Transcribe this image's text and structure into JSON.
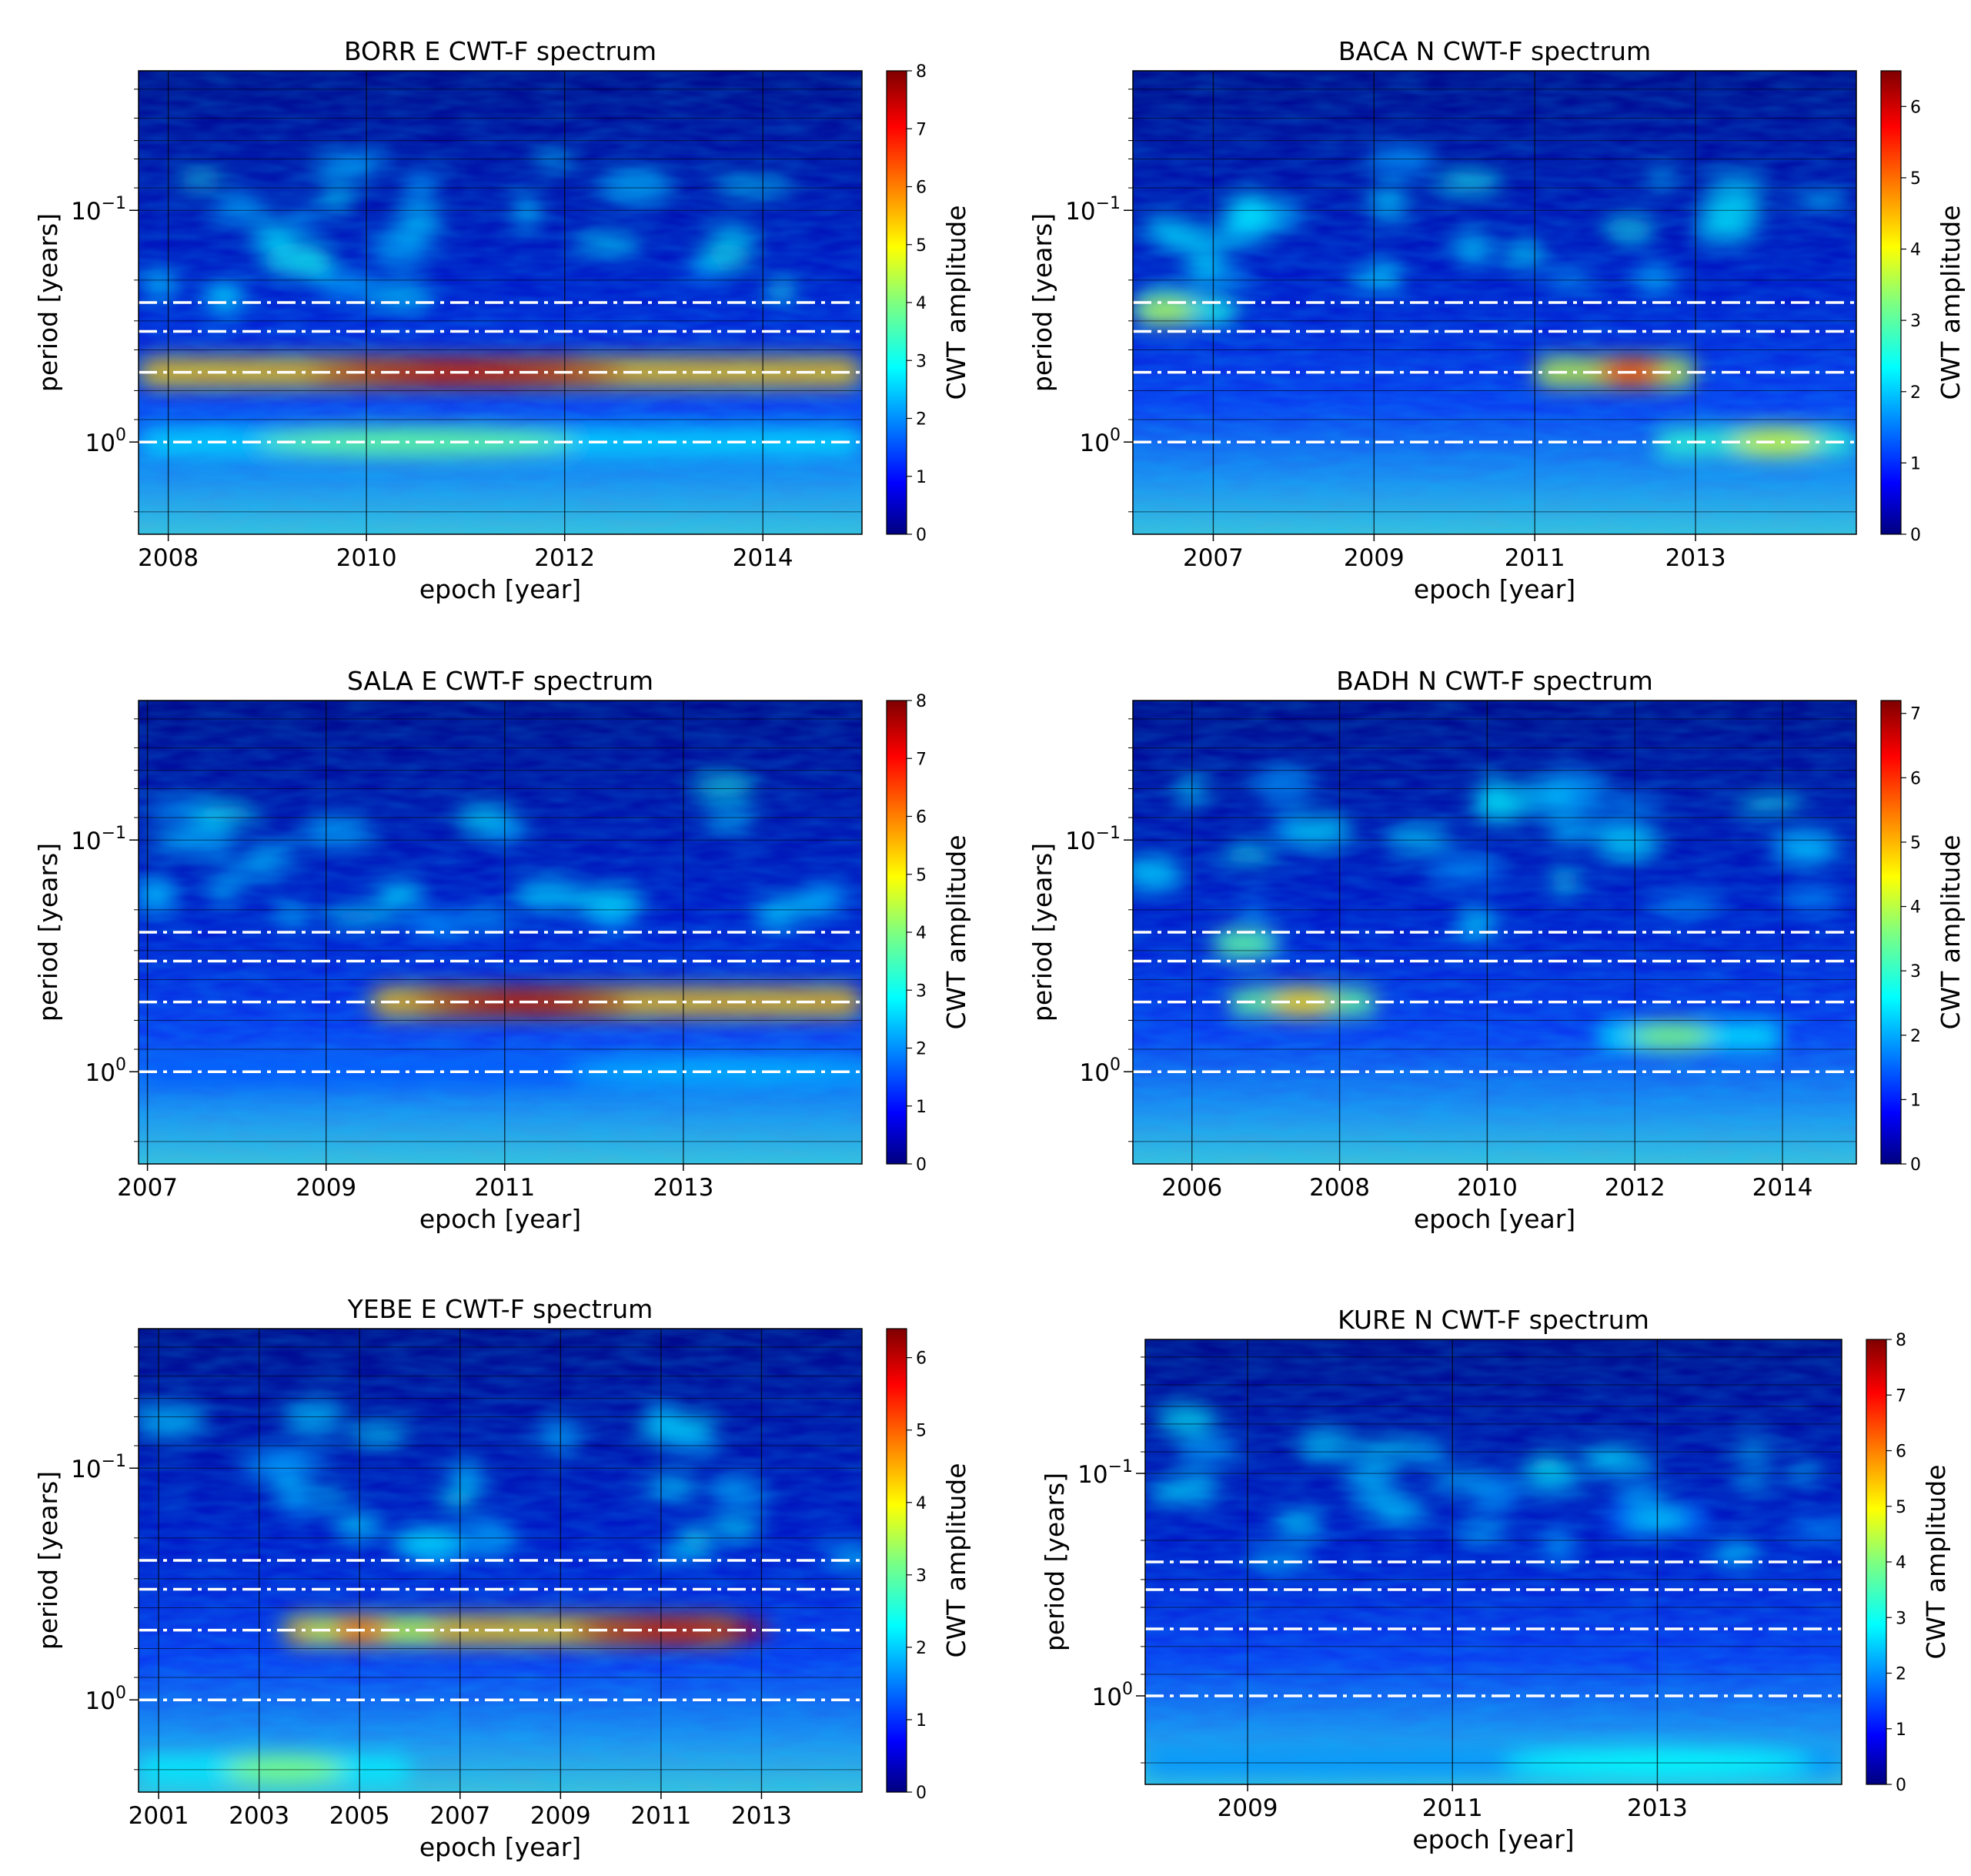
{
  "figure": {
    "description_note": "Six CWT-F wavelet spectra panels",
    "shared_labels": {
      "xlabel": "epoch [year]",
      "ylabel": "period [years]",
      "colorbar_label": "CWT amplitude",
      "ytick_a": "10",
      "ytick_a_exp": "−1",
      "ytick_b": "10",
      "ytick_b_exp": "0"
    },
    "colors": {
      "jet_low": "#00007f",
      "jet_mid": "#00ffff",
      "jet_high": "#7f0000",
      "dashed_line": "#ffffff",
      "grid_line": "#000000"
    }
  },
  "chart_data": [
    {
      "type": "heatmap",
      "title": "BORR E CWT-F spectrum",
      "xlabel": "epoch [year]",
      "ylabel": "period [years]",
      "xlim": [
        2007.7,
        2015.0
      ],
      "xticks": [
        2008,
        2010,
        2012,
        2014
      ],
      "xtick_labels": [
        "2008",
        "2010",
        "2012",
        "2014"
      ],
      "ylim_period_years": [
        0.025,
        2.5
      ],
      "yscale": "log",
      "reference_periods": [
        1.0,
        0.5,
        0.333,
        0.25
      ],
      "colorbar": {
        "label": "CWT amplitude",
        "min": 0,
        "max": 8,
        "ticks": [
          "0",
          "1",
          "2",
          "3",
          "4",
          "5",
          "6",
          "7",
          "8"
        ]
      },
      "features": [
        {
          "period": 0.5,
          "from": 2007.7,
          "to": 2015.0,
          "peak_epoch": 2011.0,
          "amplitude": 7.5
        },
        {
          "period": 1.0,
          "from": 2007.7,
          "to": 2015.0,
          "peak_epoch": 2010.5,
          "amplitude": 3.8
        }
      ]
    },
    {
      "type": "heatmap",
      "title": "BACA N CWT-F spectrum",
      "xlabel": "epoch [year]",
      "ylabel": "period [years]",
      "xlim": [
        2006.0,
        2015.0
      ],
      "xticks": [
        2007,
        2009,
        2011,
        2013
      ],
      "xtick_labels": [
        "2007",
        "2009",
        "2011",
        "2013"
      ],
      "ylim_period_years": [
        0.025,
        2.5
      ],
      "yscale": "log",
      "reference_periods": [
        1.0,
        0.5,
        0.333,
        0.25
      ],
      "colorbar": {
        "label": "CWT amplitude",
        "min": 0,
        "max": 6.5,
        "ticks": [
          "0",
          "1",
          "2",
          "3",
          "4",
          "5",
          "6"
        ]
      },
      "features": [
        {
          "period": 0.5,
          "from": 2011.0,
          "to": 2013.0,
          "peak_epoch": 2012.2,
          "amplitude": 5.2
        },
        {
          "period": 0.27,
          "from": 2006.0,
          "to": 2007.3,
          "peak_epoch": 2006.4,
          "amplitude": 3.6
        },
        {
          "period": 1.0,
          "from": 2012.5,
          "to": 2015.0,
          "peak_epoch": 2014.0,
          "amplitude": 3.8
        }
      ]
    },
    {
      "type": "heatmap",
      "title": "SALA E CWT-F spectrum",
      "xlabel": "epoch [year]",
      "ylabel": "period [years]",
      "xlim": [
        2006.9,
        2015.0
      ],
      "xticks": [
        2007,
        2009,
        2011,
        2013
      ],
      "xtick_labels": [
        "2007",
        "2009",
        "2011",
        "2013"
      ],
      "ylim_period_years": [
        0.025,
        2.5
      ],
      "yscale": "log",
      "reference_periods": [
        1.0,
        0.5,
        0.333,
        0.25
      ],
      "colorbar": {
        "label": "CWT amplitude",
        "min": 0,
        "max": 8,
        "ticks": [
          "0",
          "1",
          "2",
          "3",
          "4",
          "5",
          "6",
          "7",
          "8"
        ]
      },
      "features": [
        {
          "period": 0.5,
          "from": 2009.5,
          "to": 2015.0,
          "peak_epoch": 2011.2,
          "amplitude": 7.6
        },
        {
          "period": 1.0,
          "from": 2006.9,
          "to": 2015.0,
          "peak_epoch": 2013.5,
          "amplitude": 2.4
        }
      ]
    },
    {
      "type": "heatmap",
      "title": "BADH N CWT-F spectrum",
      "xlabel": "epoch [year]",
      "ylabel": "period [years]",
      "xlim": [
        2005.2,
        2015.0
      ],
      "xticks": [
        2006,
        2008,
        2010,
        2012,
        2014
      ],
      "xtick_labels": [
        "2006",
        "2008",
        "2010",
        "2012",
        "2014"
      ],
      "ylim_period_years": [
        0.025,
        2.5
      ],
      "yscale": "log",
      "reference_periods": [
        1.0,
        0.5,
        0.333,
        0.25
      ],
      "colorbar": {
        "label": "CWT amplitude",
        "min": 0,
        "max": 7.2,
        "ticks": [
          "0",
          "1",
          "2",
          "3",
          "4",
          "5",
          "6",
          "7"
        ]
      },
      "features": [
        {
          "period": 0.5,
          "from": 2006.5,
          "to": 2008.5,
          "peak_epoch": 2007.5,
          "amplitude": 4.8
        },
        {
          "period": 0.7,
          "from": 2011.5,
          "to": 2014.0,
          "peak_epoch": 2012.5,
          "amplitude": 3.6
        },
        {
          "period": 0.28,
          "from": 2006.3,
          "to": 2007.2,
          "peak_epoch": 2006.7,
          "amplitude": 3.4
        }
      ]
    },
    {
      "type": "heatmap",
      "title": "YEBE E CWT-F spectrum",
      "xlabel": "epoch [year]",
      "ylabel": "period [years]",
      "xlim": [
        2000.6,
        2015.0
      ],
      "xticks": [
        2001,
        2003,
        2005,
        2007,
        2009,
        2011,
        2013
      ],
      "xtick_labels": [
        "2001",
        "2003",
        "2005",
        "2007",
        "2009",
        "2011",
        "2013"
      ],
      "ylim_period_years": [
        0.025,
        2.5
      ],
      "yscale": "log",
      "reference_periods": [
        1.0,
        0.5,
        0.333,
        0.25
      ],
      "colorbar": {
        "label": "CWT amplitude",
        "min": 0,
        "max": 6.4,
        "ticks": [
          "0",
          "1",
          "2",
          "3",
          "4",
          "5",
          "6"
        ]
      },
      "features": [
        {
          "period": 0.5,
          "from": 2003.5,
          "to": 2012.5,
          "peak_epoch": 2011.2,
          "amplitude": 6.0
        },
        {
          "period": 0.5,
          "from": 2004.0,
          "to": 2006.5,
          "peak_epoch": 2005.0,
          "amplitude": 4.8
        },
        {
          "period": 2.0,
          "from": 2000.6,
          "to": 2006.0,
          "peak_epoch": 2003.5,
          "amplitude": 3.2
        }
      ]
    },
    {
      "type": "heatmap",
      "title": "KURE N CWT-F spectrum",
      "xlabel": "epoch [year]",
      "ylabel": "period [years]",
      "xlim": [
        2008.0,
        2014.8
      ],
      "xticks": [
        2009,
        2011,
        2013
      ],
      "xtick_labels": [
        "2009",
        "2011",
        "2013"
      ],
      "ylim_period_years": [
        0.025,
        2.5
      ],
      "yscale": "log",
      "reference_periods": [
        1.0,
        0.5,
        0.333,
        0.25
      ],
      "colorbar": {
        "label": "CWT amplitude",
        "min": 0,
        "max": 8,
        "ticks": [
          "0",
          "1",
          "2",
          "3",
          "4",
          "5",
          "6",
          "7",
          "8"
        ]
      },
      "features": [
        {
          "period": 0.16,
          "from": 2012.5,
          "to": 2013.5,
          "peak_epoch": 2013.0,
          "amplitude": 2.6
        },
        {
          "period": 2.0,
          "from": 2008.0,
          "to": 2014.8,
          "peak_epoch": 2013.0,
          "amplitude": 3.0
        }
      ]
    }
  ]
}
